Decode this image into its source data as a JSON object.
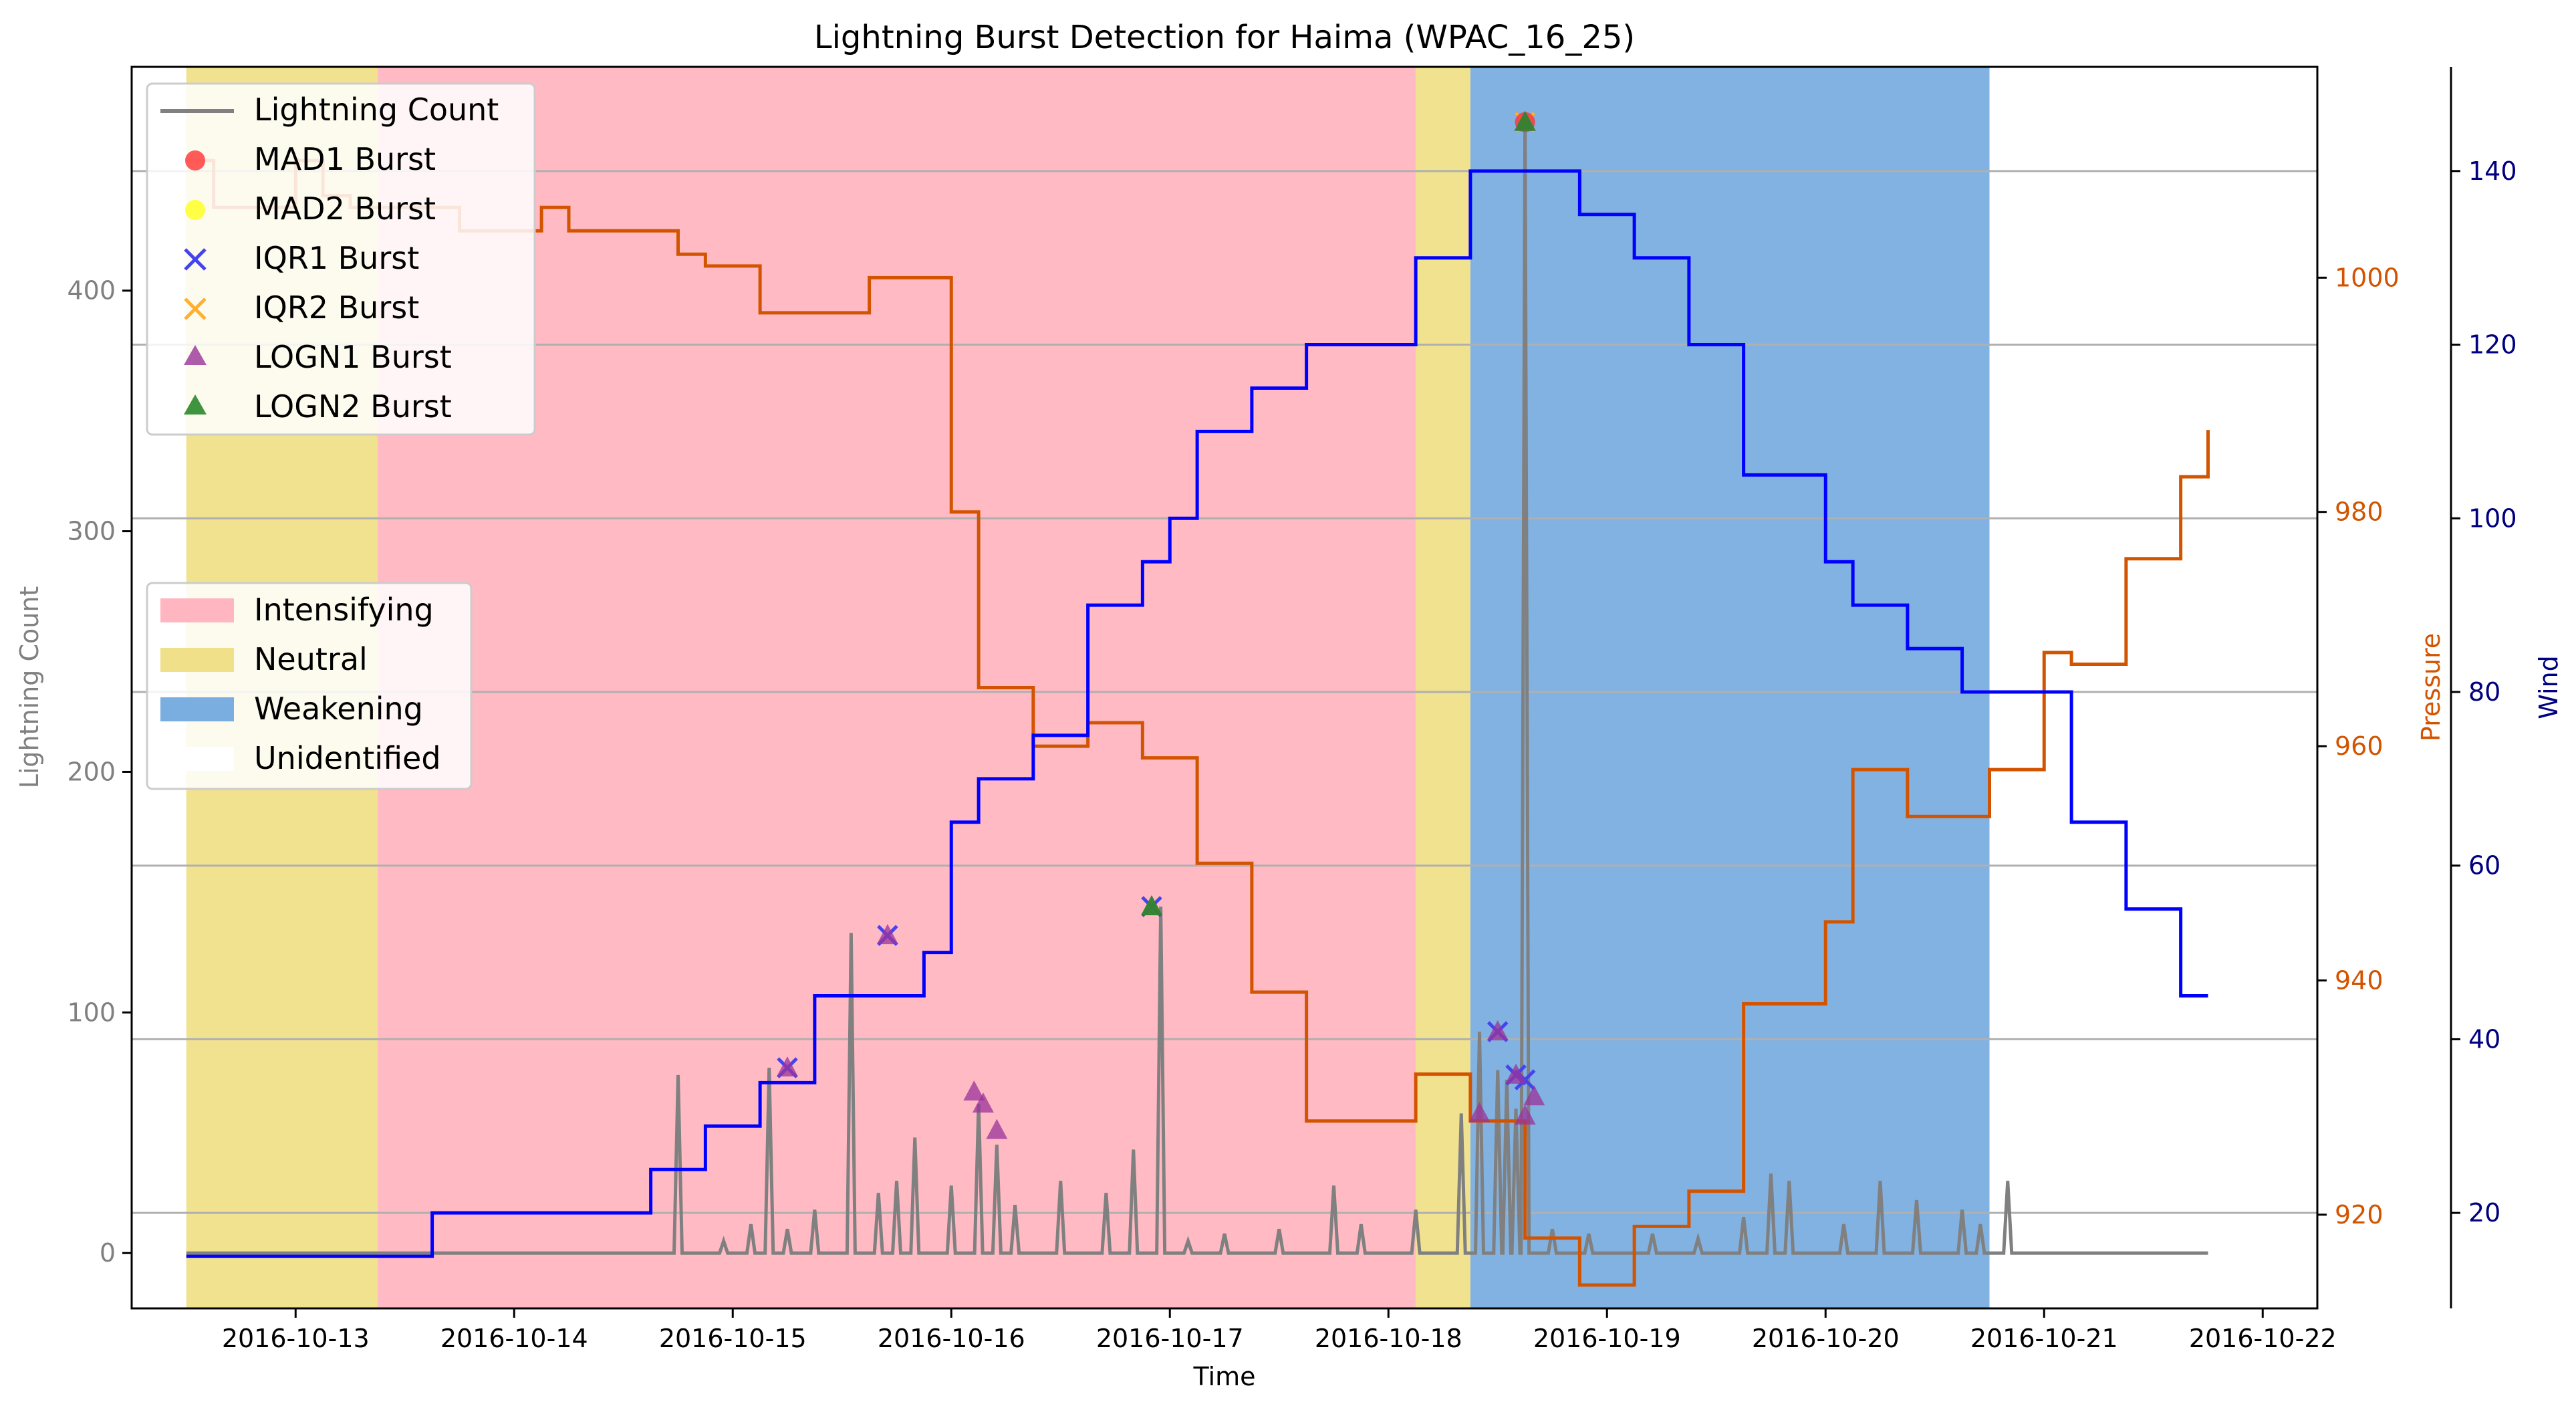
{
  "chart_data": {
    "type": "line",
    "title": "Lightning Burst Detection for Haima (WPAC_16_25)",
    "xlabel": "Time",
    "ylabel_left": "Lightning Count",
    "ylabel_pressure": "Pressure",
    "ylabel_wind": "Wind",
    "x_range": [
      "2016-10-12T06:00",
      "2016-10-22T06:00"
    ],
    "x_ticks": [
      "2016-10-13",
      "2016-10-14",
      "2016-10-15",
      "2016-10-16",
      "2016-10-17",
      "2016-10-18",
      "2016-10-19",
      "2016-10-20",
      "2016-10-21",
      "2016-10-22"
    ],
    "y_left_range": [
      -23,
      493
    ],
    "y_left_ticks": [
      0,
      100,
      200,
      300,
      400
    ],
    "y_pressure_range": [
      912,
      1018
    ],
    "y_pressure_ticks": [
      920,
      940,
      960,
      980,
      1000
    ],
    "y_wind_range": [
      9,
      152
    ],
    "y_wind_ticks": [
      20,
      40,
      60,
      80,
      100,
      120,
      140
    ],
    "grid": "horizontal lines at wind ticks",
    "colors": {
      "lightning": "#808080",
      "pressure": "#d35400",
      "wind": "#0000ff",
      "intensifying": "#ffb6c1",
      "neutral": "#f0e08a",
      "weakening": "#7aaee0",
      "mad1": "#ff3333",
      "mad2": "#ffff33",
      "iqr1": "#4444ee",
      "iqr2": "#ffb030",
      "logn1": "#993399",
      "logn2": "#2a8a2a"
    },
    "legend_series": {
      "lightning": "Lightning Count",
      "mad1": "MAD1 Burst",
      "mad2": "MAD2 Burst",
      "iqr1": "IQR1 Burst",
      "iqr2": "IQR2 Burst",
      "logn1": "LOGN1 Burst",
      "logn2": "LOGN2 Burst"
    },
    "legend_phases": {
      "intensifying": "Intensifying",
      "neutral": "Neutral",
      "weakening": "Weakening",
      "unidentified": "Unidentified"
    },
    "phases": [
      {
        "phase": "neutral",
        "start": "2016-10-12T12:00",
        "end": "2016-10-13T09:00"
      },
      {
        "phase": "intensifying",
        "start": "2016-10-13T09:00",
        "end": "2016-10-18T03:00"
      },
      {
        "phase": "neutral",
        "start": "2016-10-18T03:00",
        "end": "2016-10-18T09:00"
      },
      {
        "phase": "weakening",
        "start": "2016-10-18T09:00",
        "end": "2016-10-20T18:00"
      }
    ],
    "wind": {
      "x": [
        "2016-10-12T12:00",
        "2016-10-13T15:00",
        "2016-10-14T15:00",
        "2016-10-14T21:00",
        "2016-10-15T03:00",
        "2016-10-15T09:00",
        "2016-10-15T21:00",
        "2016-10-16T00:00",
        "2016-10-16T03:00",
        "2016-10-16T09:00",
        "2016-10-16T15:00",
        "2016-10-16T21:00",
        "2016-10-17T00:00",
        "2016-10-17T03:00",
        "2016-10-17T09:00",
        "2016-10-17T15:00",
        "2016-10-18T03:00",
        "2016-10-18T09:00",
        "2016-10-18T21:00",
        "2016-10-19T03:00",
        "2016-10-19T09:00",
        "2016-10-19T15:00",
        "2016-10-20T00:00",
        "2016-10-20T03:00",
        "2016-10-20T09:00",
        "2016-10-20T15:00",
        "2016-10-21T03:00",
        "2016-10-21T09:00",
        "2016-10-21T15:00",
        "2016-10-21T18:00"
      ],
      "y": [
        15,
        20,
        25,
        30,
        35,
        45,
        50,
        65,
        70,
        75,
        90,
        95,
        100,
        110,
        115,
        120,
        130,
        140,
        135,
        130,
        120,
        105,
        95,
        90,
        85,
        80,
        65,
        55,
        45,
        45
      ]
    },
    "pressure": {
      "x": [
        "2016-10-12T12:00",
        "2016-10-12T15:00",
        "2016-10-13T00:00",
        "2016-10-13T03:00",
        "2016-10-13T06:00",
        "2016-10-13T12:00",
        "2016-10-13T18:00",
        "2016-10-14T03:00",
        "2016-10-14T06:00",
        "2016-10-14T18:00",
        "2016-10-14T21:00",
        "2016-10-15T03:00",
        "2016-10-15T15:00",
        "2016-10-16T00:00",
        "2016-10-16T03:00",
        "2016-10-16T09:00",
        "2016-10-16T15:00",
        "2016-10-16T21:00",
        "2016-10-17T03:00",
        "2016-10-17T09:00",
        "2016-10-17T15:00",
        "2016-10-18T03:00",
        "2016-10-18T09:00",
        "2016-10-18T15:00",
        "2016-10-18T21:00",
        "2016-10-19T03:00",
        "2016-10-19T09:00",
        "2016-10-19T15:00",
        "2016-10-20T00:00",
        "2016-10-20T03:00",
        "2016-10-20T09:00",
        "2016-10-20T18:00",
        "2016-10-21T00:00",
        "2016-10-21T03:00",
        "2016-10-21T09:00",
        "2016-10-21T15:00",
        "2016-10-21T18:00"
      ],
      "y": [
        1010,
        1006,
        1010,
        1007,
        1006,
        1006,
        1004,
        1006,
        1004,
        1002,
        1001,
        997,
        1000,
        980,
        965,
        960,
        962,
        959,
        950,
        939,
        928,
        932,
        928,
        918,
        914,
        919,
        922,
        938,
        945,
        958,
        954,
        958,
        968,
        967,
        976,
        983,
        987
      ]
    },
    "lightning_count": {
      "x": [
        "2016-10-12T12:00",
        "2016-10-14T18:00",
        "2016-10-14T23:00",
        "2016-10-15T02:00",
        "2016-10-15T04:00",
        "2016-10-15T06:00",
        "2016-10-15T09:00",
        "2016-10-15T13:00",
        "2016-10-15T16:00",
        "2016-10-15T18:00",
        "2016-10-15T20:00",
        "2016-10-16T00:00",
        "2016-10-16T03:00",
        "2016-10-16T05:00",
        "2016-10-16T07:00",
        "2016-10-16T12:00",
        "2016-10-16T17:00",
        "2016-10-16T20:00",
        "2016-10-16T23:00",
        "2016-10-17T02:00",
        "2016-10-17T06:00",
        "2016-10-17T12:00",
        "2016-10-17T18:00",
        "2016-10-17T21:00",
        "2016-10-18T03:00",
        "2016-10-18T08:00",
        "2016-10-18T10:00",
        "2016-10-18T12:00",
        "2016-10-18T13:00",
        "2016-10-18T14:00",
        "2016-10-18T15:00",
        "2016-10-18T18:00",
        "2016-10-18T22:00",
        "2016-10-19T05:00",
        "2016-10-19T10:00",
        "2016-10-19T15:00",
        "2016-10-19T18:00",
        "2016-10-19T20:00",
        "2016-10-20T02:00",
        "2016-10-20T06:00",
        "2016-10-20T10:00",
        "2016-10-20T15:00",
        "2016-10-20T17:00",
        "2016-10-20T20:00",
        "2016-10-21T00:00",
        "2016-10-21T18:00"
      ],
      "y": [
        0,
        74,
        5,
        12,
        77,
        10,
        18,
        133,
        25,
        30,
        48,
        28,
        62,
        45,
        20,
        30,
        25,
        43,
        144,
        5,
        8,
        10,
        28,
        12,
        18,
        58,
        92,
        76,
        72,
        60,
        470,
        10,
        8,
        8,
        6,
        15,
        33,
        30,
        12,
        30,
        22,
        18,
        12,
        30,
        0,
        0
      ]
    },
    "bursts": {
      "iqr1": [
        {
          "x": "2016-10-15T06:00",
          "y": 77
        },
        {
          "x": "2016-10-15T17:00",
          "y": 132
        },
        {
          "x": "2016-10-16T22:00",
          "y": 144
        },
        {
          "x": "2016-10-18T12:00",
          "y": 92
        },
        {
          "x": "2016-10-18T14:00",
          "y": 74
        },
        {
          "x": "2016-10-18T15:00",
          "y": 72
        },
        {
          "x": "2016-10-18T15:00",
          "y": 470
        }
      ],
      "logn1": [
        {
          "x": "2016-10-15T06:00",
          "y": 77
        },
        {
          "x": "2016-10-15T17:00",
          "y": 132
        },
        {
          "x": "2016-10-16T02:30",
          "y": 67
        },
        {
          "x": "2016-10-16T03:30",
          "y": 62
        },
        {
          "x": "2016-10-16T05:00",
          "y": 51
        },
        {
          "x": "2016-10-16T22:00",
          "y": 144
        },
        {
          "x": "2016-10-18T10:00",
          "y": 58
        },
        {
          "x": "2016-10-18T12:00",
          "y": 92
        },
        {
          "x": "2016-10-18T14:00",
          "y": 74
        },
        {
          "x": "2016-10-18T15:00",
          "y": 57
        },
        {
          "x": "2016-10-18T16:00",
          "y": 65
        },
        {
          "x": "2016-10-18T15:00",
          "y": 470
        }
      ],
      "logn2": [
        {
          "x": "2016-10-16T22:00",
          "y": 144
        },
        {
          "x": "2016-10-18T15:00",
          "y": 470
        }
      ],
      "mad1": [
        {
          "x": "2016-10-18T15:00",
          "y": 470
        }
      ],
      "mad2": [],
      "iqr2": [
        {
          "x": "2016-10-18T15:00",
          "y": 470
        }
      ]
    }
  }
}
